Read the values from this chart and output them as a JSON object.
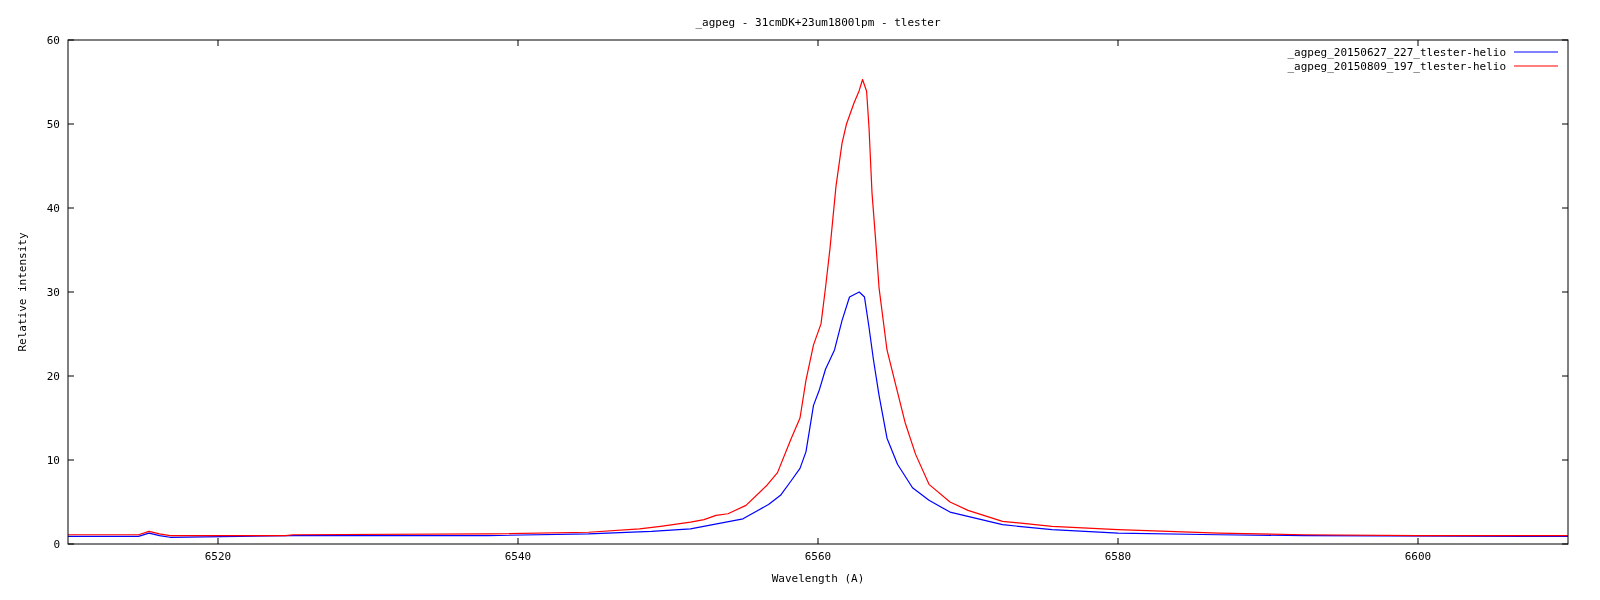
{
  "chart_data": {
    "type": "line",
    "title": "_agpeg - 31cmDK+23um1800lpm - tlester",
    "xlabel": "Wavelength (A)",
    "ylabel": "Relative intensity",
    "xlim": [
      6510,
      6610
    ],
    "xticks": [
      6520,
      6540,
      6560,
      6580,
      6600
    ],
    "ylim": [
      0,
      60
    ],
    "yticks": [
      0,
      10,
      20,
      30,
      40,
      50,
      60
    ],
    "grid": false,
    "legend": "top right",
    "series": [
      {
        "name": "_agpeg_20150627_227_tlester-helio",
        "color": "#0000ff",
        "x": [
          6510,
          6514.7,
          6515.4,
          6516.1,
          6516.8,
          6525,
          6538,
          6544.7,
          6548.9,
          6551.5,
          6555,
          6556.7,
          6557.5,
          6558.2,
          6558.8,
          6559.2,
          6559.7,
          6560.1,
          6560.5,
          6561.1,
          6561.6,
          6562.1,
          6562.75,
          6563.1,
          6563.4,
          6563.7,
          6564.07,
          6564.6,
          6565.3,
          6566.3,
          6567.4,
          6568.8,
          6572.3,
          6575.6,
          6580,
          6586.7,
          6592.4,
          6610
        ],
        "values": [
          0.9,
          0.9,
          1.3,
          1.0,
          0.8,
          1.0,
          1.0,
          1.2,
          1.5,
          1.8,
          3.0,
          4.7,
          5.8,
          7.5,
          9.0,
          11.0,
          16.5,
          18.4,
          20.8,
          23.1,
          26.6,
          29.4,
          30.0,
          29.4,
          25.8,
          21.9,
          17.7,
          12.6,
          9.5,
          6.7,
          5.2,
          3.8,
          2.3,
          1.7,
          1.3,
          1.1,
          1.0,
          0.9
        ]
      },
      {
        "name": "_agpeg_20150809_197_tlester-helio",
        "color": "#ff0000",
        "x": [
          6510,
          6514.7,
          6515.4,
          6516.1,
          6516.8,
          6524.5,
          6525,
          6538,
          6544.7,
          6548.1,
          6549.5,
          6551.5,
          6552.4,
          6553.2,
          6554,
          6555.2,
          6556.6,
          6557.3,
          6558.2,
          6558.8,
          6559.2,
          6559.7,
          6560.2,
          6560.5,
          6560.8,
          6561.2,
          6561.6,
          6561.9,
          6562.4,
          6562.75,
          6562.97,
          6563.24,
          6563.4,
          6563.6,
          6563.85,
          6564.07,
          6564.6,
          6565.2,
          6565.8,
          6566.5,
          6567.4,
          6568.8,
          6570,
          6572.3,
          6575.6,
          6580,
          6586.7,
          6592.4,
          6600,
          6610
        ],
        "values": [
          1.1,
          1.1,
          1.5,
          1.2,
          1.0,
          1.0,
          1.1,
          1.2,
          1.4,
          1.8,
          2.1,
          2.6,
          2.9,
          3.4,
          3.6,
          4.6,
          7.0,
          8.5,
          12.5,
          15.0,
          19.5,
          23.7,
          26.2,
          30.5,
          35.2,
          42.6,
          47.7,
          50.0,
          52.5,
          54.0,
          55.3,
          53.9,
          49.6,
          41.8,
          36.0,
          30.5,
          23.1,
          18.8,
          14.5,
          10.7,
          7.1,
          5.0,
          4.0,
          2.7,
          2.1,
          1.7,
          1.3,
          1.1,
          1.0,
          1.0
        ]
      }
    ]
  }
}
